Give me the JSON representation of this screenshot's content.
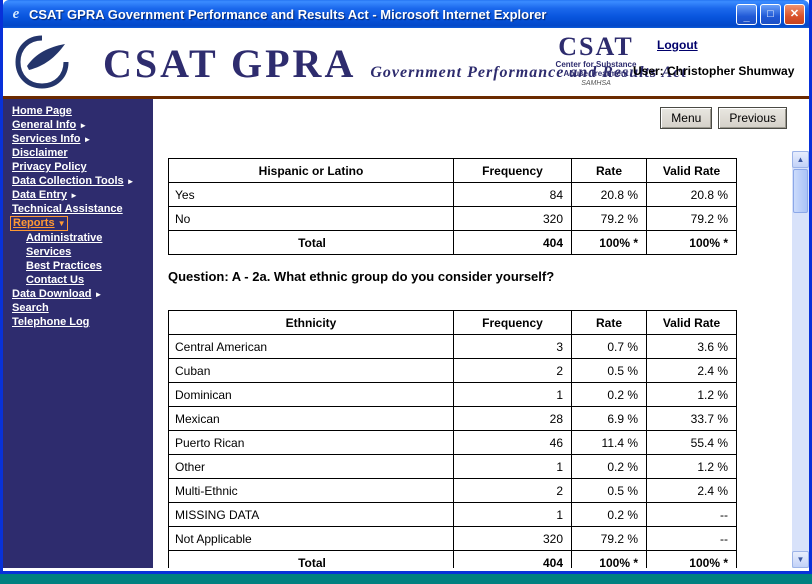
{
  "colors": {
    "titlebar_blue": "#0855DE",
    "sidebar_bg": "#2E2C6E",
    "brand_navy": "#2E2C6E",
    "header_rule_maroon": "#6B2A00",
    "active_link_orange": "#FF9933",
    "desktop_teal": "#008080",
    "button_face_gray": "#D4D0C8"
  },
  "icons": {
    "minimize_glyph": "_",
    "maximize_glyph": "□",
    "close_glyph": "✕",
    "triangle_right": "►",
    "triangle_down": "▼",
    "scroll_up": "▲",
    "scroll_down": "▼",
    "ie_glyph": "e"
  },
  "titlebar": {
    "title": "CSAT GPRA Government Performance and Results Act - Microsoft Internet Explorer"
  },
  "header": {
    "brand_title": "CSAT GPRA",
    "brand_subtitle": "Government Performance and Results Act",
    "seal": {
      "acronym": "CSAT",
      "name_line1": "Center for Substance",
      "name_line2": "Abuse Treatment",
      "agency": "SAMHSA"
    },
    "logout_label": "Logout",
    "user_label": "User: Christopher Shumway"
  },
  "sidebar": {
    "items": [
      {
        "label": "Home Page"
      },
      {
        "label": "General Info",
        "arrow": "right"
      },
      {
        "label": "Services Info",
        "arrow": "right"
      },
      {
        "label": "Disclaimer"
      },
      {
        "label": "Privacy Policy"
      },
      {
        "label": "Data Collection Tools",
        "arrow": "right"
      },
      {
        "label": "Data Entry",
        "arrow": "right"
      },
      {
        "label": "Technical Assistance"
      },
      {
        "label": "Reports",
        "arrow": "down",
        "active": true
      },
      {
        "label": "Administrative",
        "indent": true
      },
      {
        "label": "Services",
        "indent": true
      },
      {
        "label": "Best Practices",
        "indent": true
      },
      {
        "label": "Contact Us",
        "indent": true
      },
      {
        "label": "Data Download",
        "arrow": "right"
      },
      {
        "label": "Search"
      },
      {
        "label": "Telephone Log"
      }
    ]
  },
  "toolbar": {
    "menu_label": "Menu",
    "previous_label": "Previous"
  },
  "main": {
    "question_text": "Question: A - 2a. What ethnic group do you consider yourself?",
    "tables": [
      {
        "name": "hispanic-or-latino-table",
        "headers": [
          "Hispanic or Latino",
          "Frequency",
          "Rate",
          "Valid Rate"
        ],
        "rows": [
          [
            "Yes",
            "84",
            "20.8 %",
            "20.8 %"
          ],
          [
            "No",
            "320",
            "79.2 %",
            "79.2 %"
          ]
        ],
        "total": [
          "Total",
          "404",
          "100% *",
          "100% *"
        ]
      },
      {
        "name": "ethnicity-table",
        "headers": [
          "Ethnicity",
          "Frequency",
          "Rate",
          "Valid Rate"
        ],
        "rows": [
          [
            "Central American",
            "3",
            "0.7 %",
            "3.6 %"
          ],
          [
            "Cuban",
            "2",
            "0.5 %",
            "2.4 %"
          ],
          [
            "Dominican",
            "1",
            "0.2 %",
            "1.2 %"
          ],
          [
            "Mexican",
            "28",
            "6.9 %",
            "33.7 %"
          ],
          [
            "Puerto Rican",
            "46",
            "11.4 %",
            "55.4 %"
          ],
          [
            "Other",
            "1",
            "0.2 %",
            "1.2 %"
          ],
          [
            "Multi-Ethnic",
            "2",
            "0.5 %",
            "2.4 %"
          ],
          [
            "MISSING DATA",
            "1",
            "0.2 %",
            "--"
          ],
          [
            "Not Applicable",
            "320",
            "79.2 %",
            "--"
          ]
        ],
        "total": [
          "Total",
          "404",
          "100% *",
          "100% *"
        ]
      }
    ]
  }
}
